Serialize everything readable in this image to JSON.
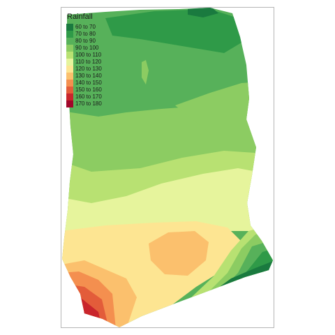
{
  "legend": {
    "title": "Rainfall",
    "entries": [
      {
        "label": "60 to 70",
        "color": "#1a7a3f"
      },
      {
        "label": "70 to 80",
        "color": "#2f9a48"
      },
      {
        "label": "80 to 90",
        "color": "#57b15a"
      },
      {
        "label": "90 to 100",
        "color": "#8ccc62"
      },
      {
        "label": "100 to 110",
        "color": "#b8e172"
      },
      {
        "label": "110 to 120",
        "color": "#e6f49c"
      },
      {
        "label": "120 to 130",
        "color": "#fde592"
      },
      {
        "label": "130 to 140",
        "color": "#fbc06d"
      },
      {
        "label": "140 to 150",
        "color": "#f48f4f"
      },
      {
        "label": "150 to 160",
        "color": "#e35c3a"
      },
      {
        "label": "160 to 170",
        "color": "#c9252c"
      },
      {
        "label": "170 to 180",
        "color": "#a1062a"
      }
    ]
  }
}
